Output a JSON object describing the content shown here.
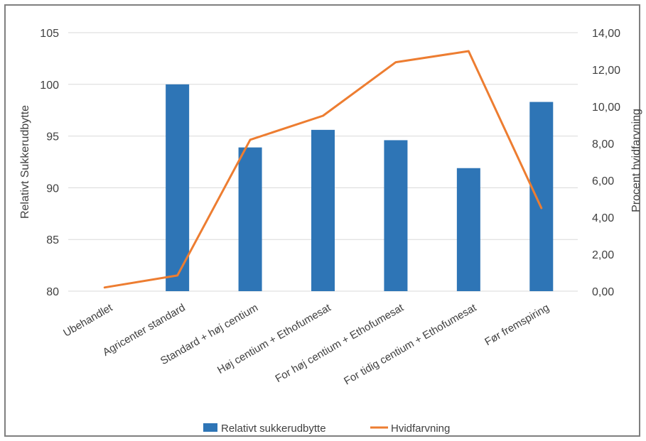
{
  "chart_data": {
    "type": "bar+line",
    "categories": [
      "Ubehandlet",
      "Agricenter standard",
      "Standard + høj centium",
      "Høj centium + Ethofumesat",
      "For høj centium + Ethofumesat",
      "For tidig centium + Ethofumesat",
      "Før fremspiring"
    ],
    "series": [
      {
        "name": "Relativt sukkerudbytte",
        "kind": "bar",
        "axis": "left",
        "color": "#2e75b6",
        "values": [
          80,
          100,
          93.9,
          95.6,
          94.6,
          91.9,
          98.3
        ]
      },
      {
        "name": "Hvidfarvning",
        "kind": "line",
        "axis": "right",
        "color": "#ed7d31",
        "values": [
          0.2,
          0.85,
          8.2,
          9.5,
          12.4,
          13.0,
          4.5
        ]
      }
    ],
    "yleft": {
      "label": "Relativt Sukkerudbytte",
      "min": 80,
      "max": 105,
      "ticks": [
        "80",
        "85",
        "90",
        "95",
        "100",
        "105"
      ]
    },
    "yright": {
      "label": "Procent hvidfarvning",
      "min": 0,
      "max": 14,
      "ticks": [
        "0,00",
        "2,00",
        "4,00",
        "6,00",
        "8,00",
        "10,00",
        "12,00",
        "14,00"
      ]
    },
    "grid": true,
    "legend": "bottom"
  }
}
